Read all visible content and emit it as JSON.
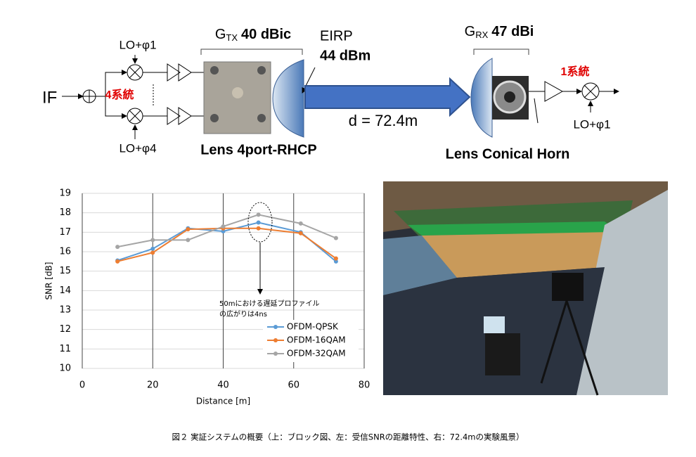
{
  "diagram": {
    "if_label": "IF",
    "lo_top": "LO+φ1",
    "lo_bottom": "LO+φ4",
    "tx_branches": "4系統",
    "tx_gain": {
      "symbol": "G",
      "sub": "TX",
      "value": "40 dBic"
    },
    "eirp": {
      "label": "EIRP",
      "value": "44 dBm"
    },
    "distance": "d = 72.4m",
    "rx_gain": {
      "symbol": "G",
      "sub": "RX",
      "value": "47 dBi"
    },
    "rx_branches": "1系統",
    "lo_rx": "LO+φ1",
    "tx_antenna": "Lens 4port-RHCP",
    "rx_antenna": "Lens Conical Horn"
  },
  "chart_data": {
    "type": "line",
    "x": [
      10,
      20,
      30,
      40,
      50,
      62,
      72
    ],
    "series": [
      {
        "name": "OFDM-QPSK",
        "color": "#5b9bd5",
        "values": [
          15.55,
          16.15,
          17.2,
          17.05,
          17.5,
          17.0,
          15.5
        ]
      },
      {
        "name": "OFDM-16QAM",
        "color": "#ed7d31",
        "values": [
          15.5,
          15.95,
          17.15,
          17.2,
          17.2,
          16.95,
          15.65
        ]
      },
      {
        "name": "OFDM-32QAM",
        "color": "#a5a5a5",
        "values": [
          16.25,
          16.6,
          16.6,
          17.3,
          17.9,
          17.45,
          16.7
        ]
      }
    ],
    "xlim": [
      0,
      80
    ],
    "xticks": [
      0,
      20,
      40,
      60,
      80
    ],
    "ylim": [
      10,
      19
    ],
    "yticks": [
      10,
      11,
      12,
      13,
      14,
      15,
      16,
      17,
      18,
      19
    ],
    "x_label": "Distance [m]",
    "y_label": "SNR [dB]",
    "annotation": [
      "50mにおける遅延プロファイル",
      "の広がりは4ns"
    ],
    "grid": true,
    "legend": "lower right"
  },
  "caption": "図２ 実証システムの概要（上：ブロック図、左：受信SNRの距離特性、右：72.4mの実験風景）"
}
